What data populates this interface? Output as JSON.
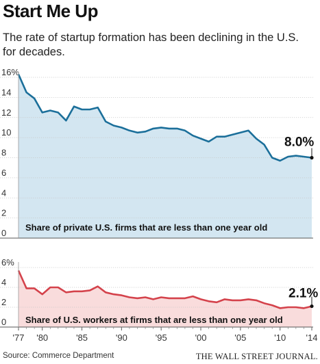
{
  "title": "Start Me Up",
  "subtitle": "The rate of startup formation has been declining in the U.S. for decades.",
  "source": "Source: Commerce Department",
  "credit": "THE WALL STREET JOURNAL.",
  "colors": {
    "top_line": "#1b6f9a",
    "top_fill": "#d3e6f1",
    "bottom_line": "#d4424b",
    "bottom_fill": "#f9dcdc",
    "grid": "#c8c8c8",
    "axis_text": "#333333"
  },
  "chart_data": [
    {
      "type": "area",
      "title": "Share of private U.S. firms that are less than one year old",
      "x": [
        1977,
        1978,
        1979,
        1980,
        1981,
        1982,
        1983,
        1984,
        1985,
        1986,
        1987,
        1988,
        1989,
        1990,
        1991,
        1992,
        1993,
        1994,
        1995,
        1996,
        1997,
        1998,
        1999,
        2000,
        2001,
        2002,
        2003,
        2004,
        2005,
        2006,
        2007,
        2008,
        2009,
        2010,
        2011,
        2012,
        2013,
        2014
      ],
      "values": [
        16.3,
        14.5,
        13.9,
        12.5,
        12.7,
        12.5,
        11.7,
        13.1,
        12.8,
        12.8,
        13.0,
        11.6,
        11.2,
        11.0,
        10.7,
        10.5,
        10.6,
        10.9,
        11.0,
        10.9,
        10.9,
        10.7,
        10.2,
        9.9,
        9.6,
        10.1,
        10.1,
        10.3,
        10.5,
        10.7,
        9.9,
        9.3,
        8.0,
        7.7,
        8.1,
        8.2,
        8.1,
        8.0
      ],
      "y_ticks": [
        "16%",
        "14",
        "12",
        "10",
        "8",
        "6",
        "4",
        "2",
        "0"
      ],
      "ylim": [
        0,
        16
      ],
      "grid": true,
      "end_label": "8.0%"
    },
    {
      "type": "area",
      "title": "Share of U.S. workers at firms that are less than one year old",
      "x": [
        1977,
        1978,
        1979,
        1980,
        1981,
        1982,
        1983,
        1984,
        1985,
        1986,
        1987,
        1988,
        1989,
        1990,
        1991,
        1992,
        1993,
        1994,
        1995,
        1996,
        1997,
        1998,
        1999,
        2000,
        2001,
        2002,
        2003,
        2004,
        2005,
        2006,
        2007,
        2008,
        2009,
        2010,
        2011,
        2012,
        2013,
        2014
      ],
      "values": [
        5.7,
        3.9,
        3.9,
        3.3,
        4.0,
        4.0,
        3.5,
        3.6,
        3.6,
        3.7,
        4.1,
        3.5,
        3.3,
        3.2,
        3.0,
        2.9,
        3.0,
        2.8,
        3.0,
        2.9,
        2.9,
        2.9,
        3.1,
        2.8,
        2.6,
        2.5,
        2.8,
        2.7,
        2.7,
        2.8,
        2.7,
        2.4,
        2.2,
        1.9,
        2.0,
        2.0,
        1.9,
        2.1
      ],
      "y_ticks": [
        "6%",
        "4",
        "2",
        "0"
      ],
      "ylim": [
        0,
        6
      ],
      "grid": true,
      "end_label": "2.1%"
    }
  ],
  "x_tick_labels": [
    "'77",
    "'80",
    "'85",
    "'90",
    "'95",
    "'00",
    "'05",
    "'10",
    "'14"
  ],
  "x_tick_years": [
    1977,
    1980,
    1985,
    1990,
    1995,
    2000,
    2005,
    2010,
    2014
  ]
}
